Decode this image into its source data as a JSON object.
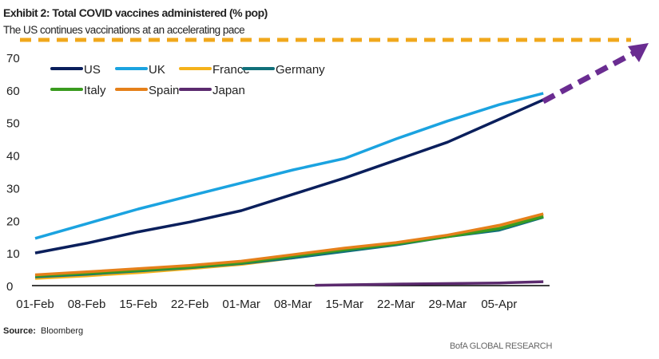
{
  "header": {
    "title": "Exhibit 2: Total COVID vaccines administered (% pop)",
    "subtitle": "The US continues vaccinations at an accelerating pace"
  },
  "footer": {
    "source_label": "Source:",
    "source": "Bloomberg",
    "brand": "BofA GLOBAL RESEARCH"
  },
  "chart_data": {
    "type": "line",
    "title": "Total COVID vaccines administered (% pop)",
    "xlabel": "",
    "ylabel": "",
    "ylim": [
      0,
      70
    ],
    "yticks": [
      0,
      10,
      20,
      30,
      40,
      50,
      60,
      70
    ],
    "xticks": [
      "01-Feb",
      "08-Feb",
      "15-Feb",
      "22-Feb",
      "01-Mar",
      "08-Mar",
      "15-Mar",
      "22-Mar",
      "29-Mar",
      "05-Apr"
    ],
    "x_unit": "days since 01-Feb",
    "legend_position": "top-left",
    "series": [
      {
        "name": "US",
        "color": "#0a1f5c",
        "x": [
          0,
          7,
          14,
          21,
          28,
          35,
          42,
          49,
          56,
          63,
          69
        ],
        "values": [
          10,
          13,
          16.5,
          19.5,
          23,
          28,
          33,
          38.5,
          44,
          51,
          57
        ]
      },
      {
        "name": "UK",
        "color": "#1ba3e0",
        "x": [
          0,
          7,
          14,
          21,
          28,
          35,
          42,
          49,
          56,
          63,
          69
        ],
        "values": [
          14.5,
          19,
          23.5,
          27.5,
          31.5,
          35.5,
          39,
          45,
          50.5,
          55.5,
          59
        ]
      },
      {
        "name": "France",
        "color": "#f5b21a",
        "x": [
          0,
          7,
          14,
          21,
          28,
          35,
          42,
          49,
          56,
          63,
          69
        ],
        "values": [
          2.2,
          3,
          4,
          5.2,
          6.5,
          8.5,
          11,
          13,
          15,
          18,
          21.5
        ]
      },
      {
        "name": "Germany",
        "color": "#11707a",
        "x": [
          0,
          7,
          14,
          21,
          28,
          35,
          42,
          49,
          56,
          63,
          69
        ],
        "values": [
          2.7,
          3.5,
          4.5,
          5.5,
          6.8,
          8.5,
          10.5,
          12.5,
          15,
          17,
          21
        ]
      },
      {
        "name": "Italy",
        "color": "#3a9b1f",
        "x": [
          0,
          7,
          14,
          21,
          28,
          35,
          42,
          49,
          56,
          63,
          69
        ],
        "values": [
          3,
          3.8,
          4.7,
          5.7,
          7,
          9,
          11,
          12.8,
          15,
          17.5,
          21.2
        ]
      },
      {
        "name": "Spain",
        "color": "#e5801a",
        "x": [
          0,
          7,
          14,
          21,
          28,
          35,
          42,
          49,
          56,
          63,
          69
        ],
        "values": [
          3.3,
          4.2,
          5.2,
          6.2,
          7.5,
          9.5,
          11.5,
          13.2,
          15.5,
          18.5,
          22
        ]
      },
      {
        "name": "Japan",
        "color": "#5b2a6e",
        "x": [
          38,
          50,
          63,
          69
        ],
        "values": [
          0.1,
          0.5,
          0.8,
          1.2
        ]
      }
    ]
  }
}
